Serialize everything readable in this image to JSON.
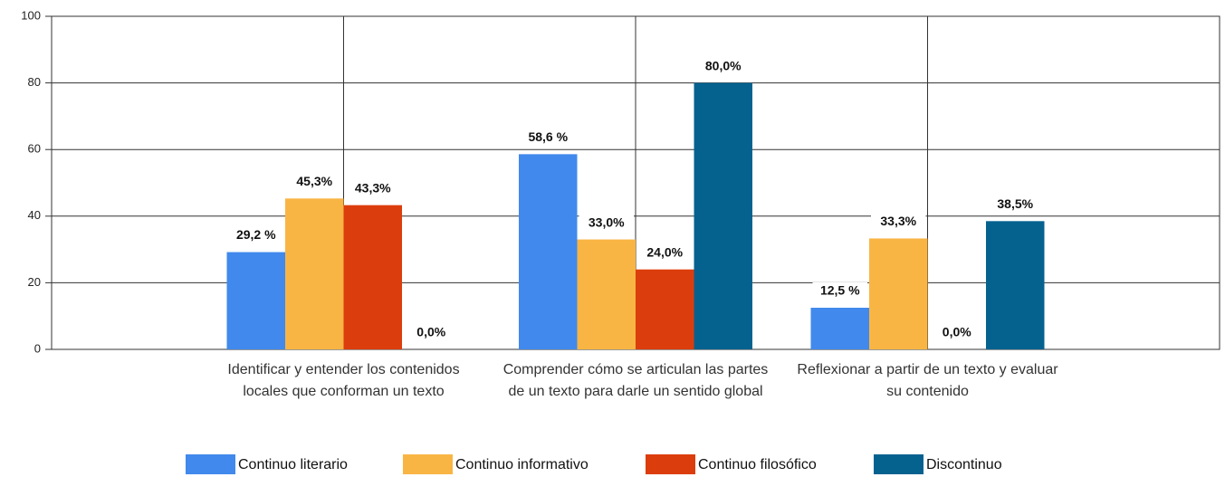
{
  "chart_data": {
    "type": "bar",
    "categories": [
      "Identificar y entender los contenidos locales que conforman un texto",
      "Comprender cómo se articulan las partes de un texto para darle un sentido global",
      "Reflexionar a partir de un texto y evaluar su contenido"
    ],
    "series": [
      {
        "name": "Continuo literario",
        "color": "#4189ec",
        "values": [
          29.2,
          58.6,
          12.5
        ],
        "value_labels": [
          "29,2 %",
          "58,6 %",
          "12,5 %"
        ]
      },
      {
        "name": "Continuo informativo",
        "color": "#f9b544",
        "values": [
          45.3,
          33.0,
          33.3
        ],
        "value_labels": [
          "45,3%",
          "33,0%",
          "33,3%"
        ]
      },
      {
        "name": "Continuo filosófico",
        "color": "#dc3d0c",
        "values": [
          43.3,
          24.0,
          0.0
        ],
        "value_labels": [
          "43,3%",
          "24,0%",
          "0,0%"
        ]
      },
      {
        "name": "Discontinuo",
        "color": "#05628f",
        "values": [
          0.0,
          80.0,
          38.5
        ],
        "value_labels": [
          "0,0%",
          "80,0%",
          "38,5%"
        ]
      }
    ],
    "ylim": [
      0,
      100
    ],
    "yticks": [
      0,
      20,
      40,
      60,
      80,
      100
    ],
    "grid": true,
    "legend": "bottom"
  }
}
